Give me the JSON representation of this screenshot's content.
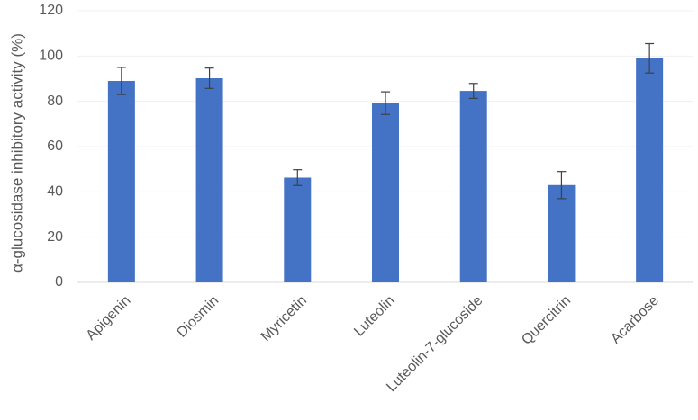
{
  "chart_data": {
    "type": "bar",
    "y_label": "α-glucosidase inhibitory activity (%)",
    "categories": [
      "Apigenin",
      "Diosmin",
      "Myricetin",
      "Luteolin",
      "Luteolin-7-glucoside",
      "Quercitrin",
      "Acarbose"
    ],
    "values": [
      89,
      90.2,
      46.3,
      79.2,
      84.6,
      43,
      99
    ],
    "errors": [
      6,
      4.5,
      3.5,
      5,
      3.3,
      6,
      6.5
    ],
    "color": "#4472c4",
    "ylim": [
      0,
      120
    ],
    "yticks": [
      0,
      20,
      40,
      60,
      80,
      100,
      120
    ],
    "grid": true
  }
}
